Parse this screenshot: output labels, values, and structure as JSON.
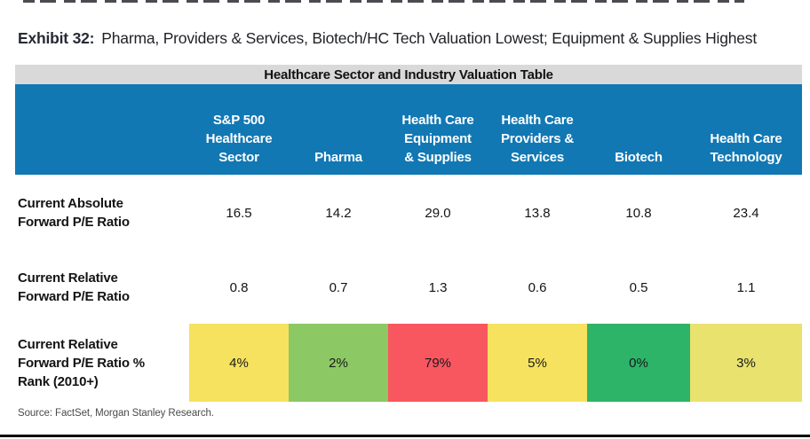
{
  "exhibit": {
    "label": "Exhibit 32:",
    "title": "Pharma, Providers & Services, Biotech/HC Tech Valuation Lowest; Equipment & Supplies Highest"
  },
  "table": {
    "title": "Healthcare Sector and Industry Valuation Table",
    "column_headers": [
      "S&P 500\nHealthcare\nSector",
      "Pharma",
      "Health Care\nEquipment\n& Supplies",
      "Health Care\nProviders &\nServices",
      "Biotech",
      "Health Care\nTechnology"
    ],
    "rows": [
      {
        "label": "Current Absolute\nForward P/E Ratio",
        "values": [
          "16.5",
          "14.2",
          "29.0",
          "13.8",
          "10.8",
          "23.4"
        ]
      },
      {
        "label": "Current Relative\nForward P/E Ratio",
        "values": [
          "0.8",
          "0.7",
          "1.3",
          "0.6",
          "0.5",
          "1.1"
        ]
      },
      {
        "label": "Current Relative\nForward P/E Ratio %\nRank (2010+)",
        "values": [
          "4%",
          "2%",
          "79%",
          "5%",
          "0%",
          "3%"
        ],
        "cell_colors": [
          "#F6E25F",
          "#8CC863",
          "#F9575F",
          "#F6E25F",
          "#2EB468",
          "#EAE26E"
        ]
      }
    ]
  },
  "source": "Source: FactSet, Morgan Stanley Research.",
  "colors": {
    "header_bg": "#1178B4",
    "header_text": "#FFFFFF",
    "table_title_bg": "#D9D9D9",
    "rank_yellow": "#F6E25F",
    "rank_light_green": "#8CC863",
    "rank_red": "#F9575F",
    "rank_green": "#2EB468",
    "bottom_rule": "#000000"
  },
  "chart_data": {
    "type": "table",
    "title": "Healthcare Sector and Industry Valuation Table",
    "columns": [
      "S&P 500 Healthcare Sector",
      "Pharma",
      "Health Care Equipment & Supplies",
      "Health Care Providers & Services",
      "Biotech",
      "Health Care Technology"
    ],
    "rows": [
      {
        "name": "Current Absolute Forward P/E Ratio",
        "values": [
          16.5,
          14.2,
          29.0,
          13.8,
          10.8,
          23.4
        ]
      },
      {
        "name": "Current Relative Forward P/E Ratio",
        "values": [
          0.8,
          0.7,
          1.3,
          0.6,
          0.5,
          1.1
        ]
      },
      {
        "name": "Current Relative Forward P/E Ratio % Rank (2010+)",
        "values_pct": [
          4,
          2,
          79,
          5,
          0,
          3
        ]
      }
    ]
  }
}
